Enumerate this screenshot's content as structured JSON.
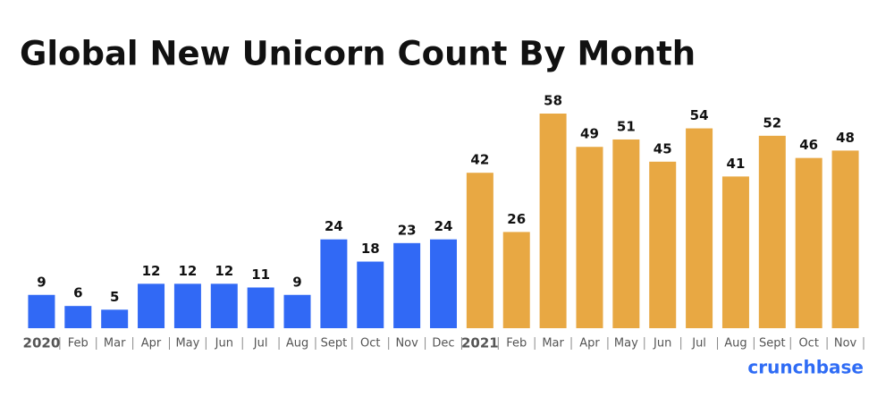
{
  "chart_data": {
    "type": "bar",
    "title": "Global New Unicorn Count By Month",
    "categories": [
      "2020",
      "Feb",
      "Mar",
      "Apr",
      "May",
      "Jun",
      "Jul",
      "Aug",
      "Sept",
      "Oct",
      "Nov",
      "Dec",
      "2021",
      "Feb",
      "Mar",
      "Apr",
      "May",
      "Jun",
      "Jul",
      "Aug",
      "Sept",
      "Oct",
      "Nov"
    ],
    "values": [
      9,
      6,
      5,
      12,
      12,
      12,
      11,
      9,
      24,
      18,
      23,
      24,
      42,
      26,
      58,
      49,
      51,
      45,
      54,
      41,
      52,
      46,
      48
    ],
    "colors": [
      "#3169f5",
      "#3169f5",
      "#3169f5",
      "#3169f5",
      "#3169f5",
      "#3169f5",
      "#3169f5",
      "#3169f5",
      "#3169f5",
      "#3169f5",
      "#3169f5",
      "#3169f5",
      "#e8a843",
      "#e8a843",
      "#e8a843",
      "#e8a843",
      "#e8a843",
      "#e8a843",
      "#e8a843",
      "#e8a843",
      "#e8a843",
      "#e8a843",
      "#e8a843"
    ],
    "source": "crunchbase"
  }
}
